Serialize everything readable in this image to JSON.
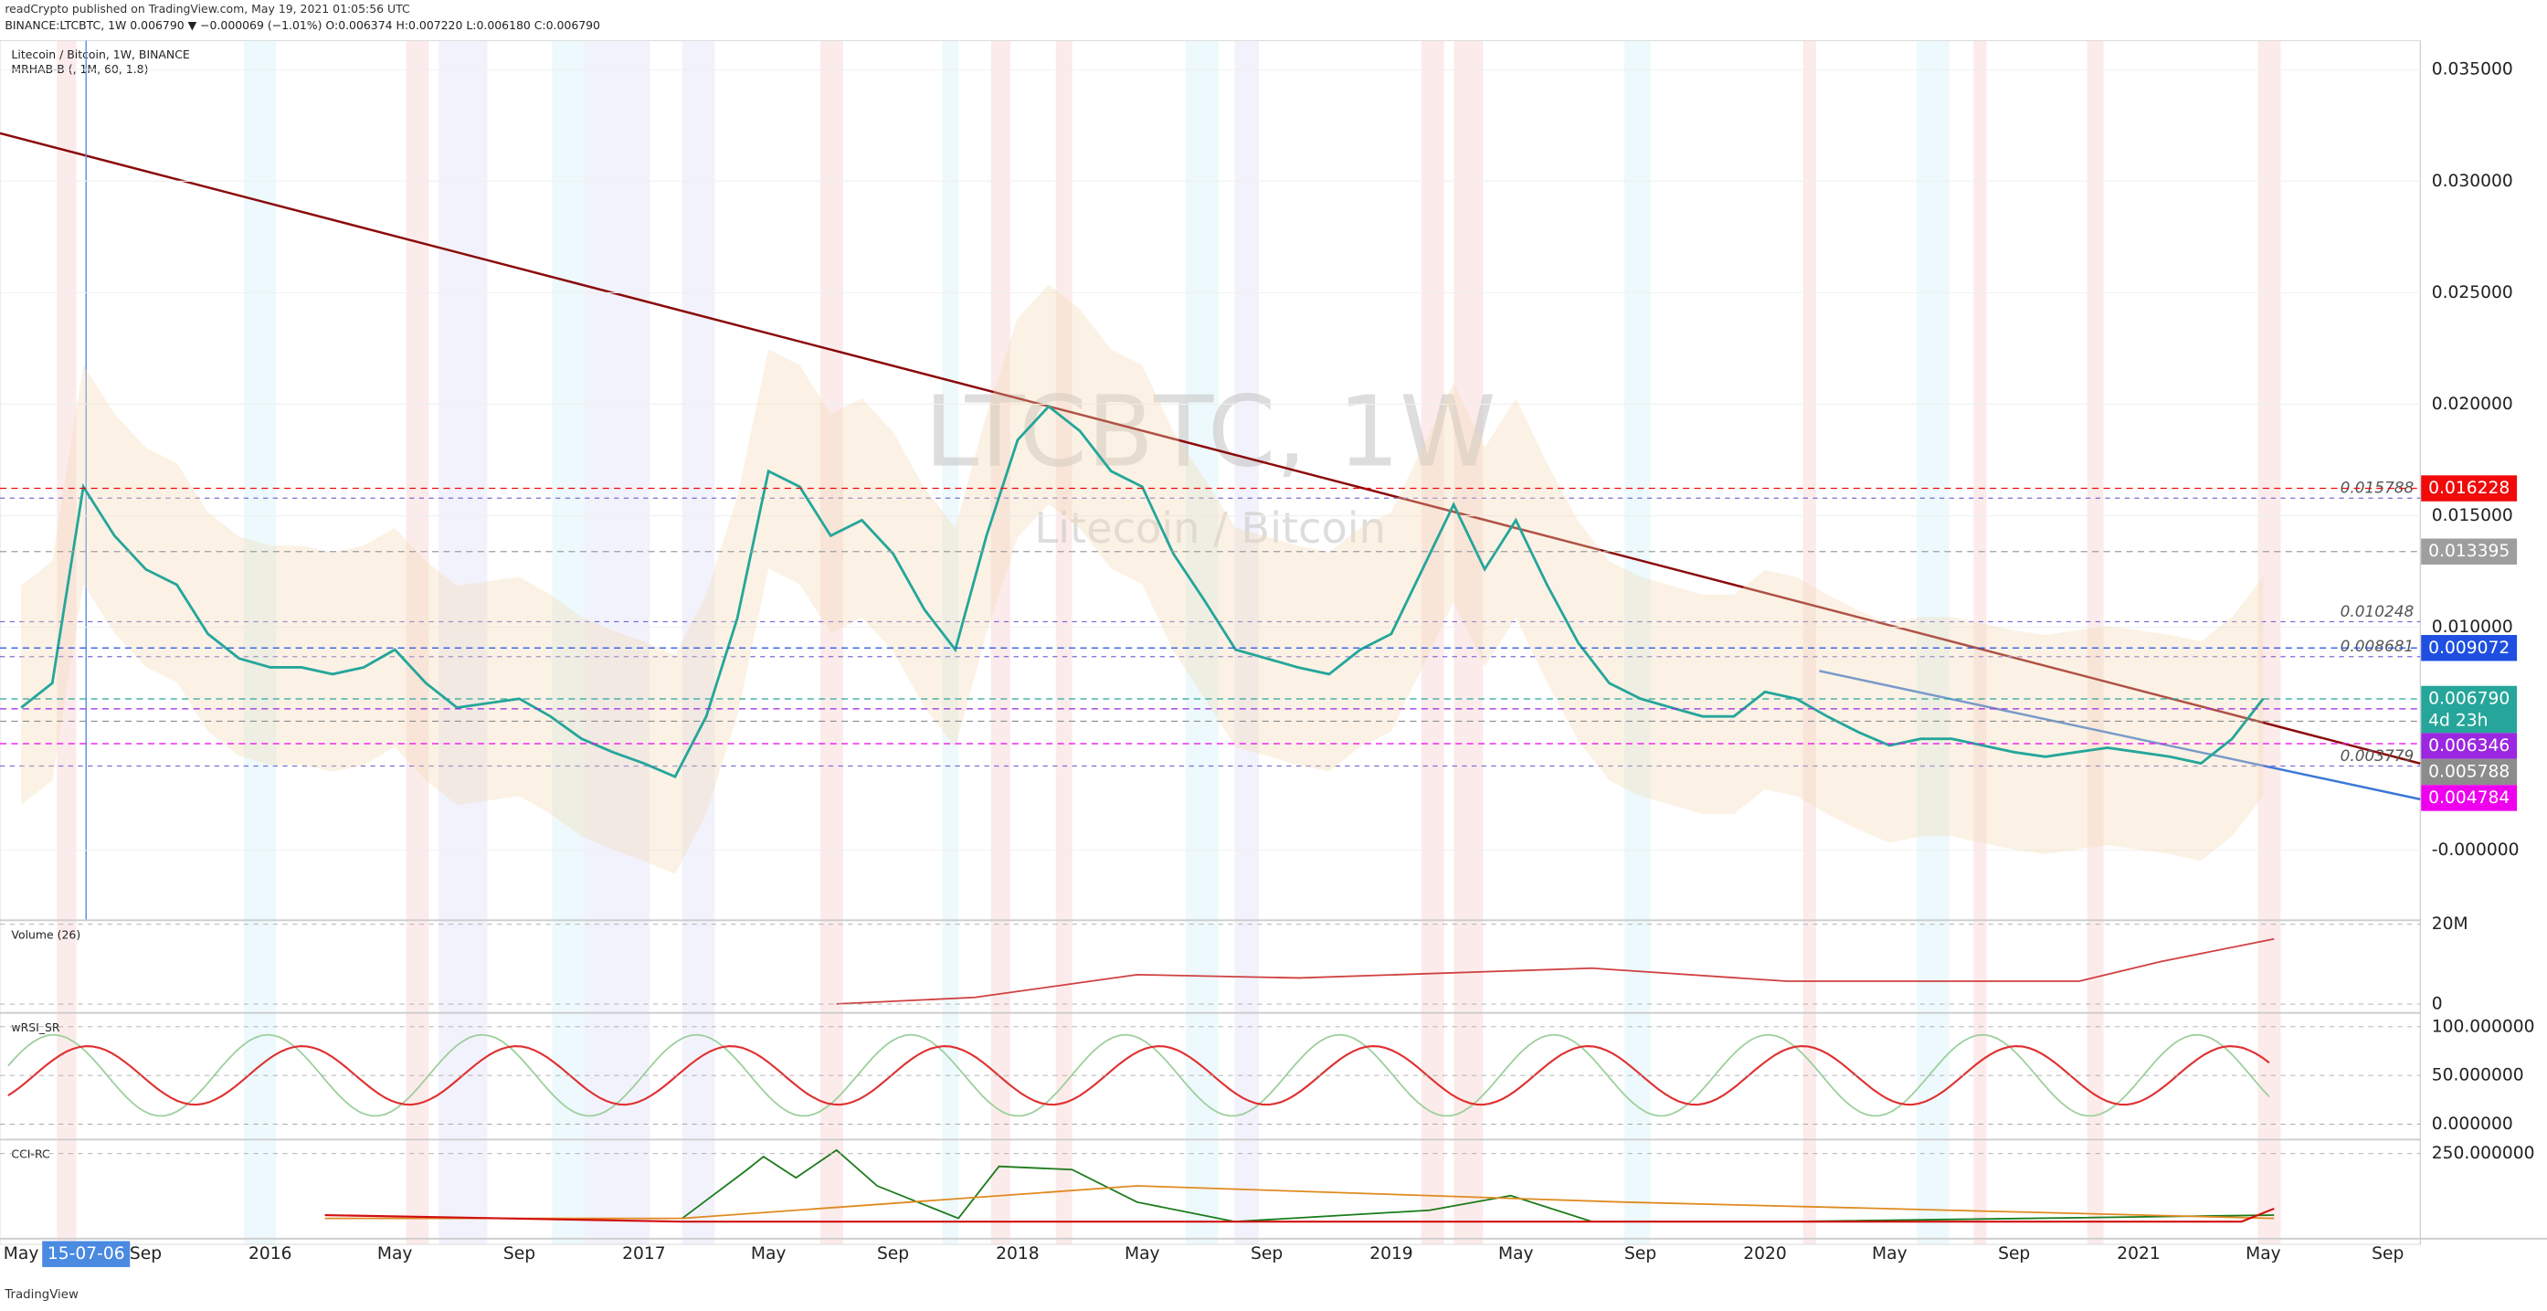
{
  "header": {
    "publisher": "readCrypto published on TradingView.com, May 19, 2021 01:05:56 UTC",
    "symbol_line": "BINANCE:LTCBTC, 1W 0.006790 ▼ −0.000069 (−1.01%) O:0.006374 H:0.007220 L:0.006180 C:0.006790"
  },
  "chart_data": {
    "type": "line",
    "legend_title": "Litecoin / Bitcoin, 1W, BINANCE",
    "legend_indicator": "MRHAB-B (, 1M, 60, 1.8)",
    "watermark": "LTCBTC, 1W",
    "watermark_sub": "Litecoin / Bitcoin",
    "crosshair_label": "15-07-06",
    "categories": [
      "May",
      null,
      null,
      null,
      "Sep",
      null,
      null,
      null,
      "2016",
      null,
      null,
      null,
      "May",
      null,
      null,
      null,
      "Sep",
      null,
      null,
      null,
      "2017",
      null,
      null,
      null,
      "May",
      null,
      null,
      null,
      "Sep",
      null,
      null,
      null,
      "2018",
      null,
      null,
      null,
      "May",
      null,
      null,
      null,
      "Sep",
      null,
      null,
      null,
      "2019",
      null,
      null,
      null,
      "May",
      null,
      null,
      null,
      "Sep",
      null,
      null,
      null,
      "2020",
      null,
      null,
      null,
      "May",
      null,
      null,
      null,
      "Sep",
      null,
      null,
      null,
      "2021",
      null,
      null,
      null,
      "May",
      null,
      null,
      null,
      "Sep"
    ],
    "values": [
      0.0064,
      0.0075,
      0.0163,
      0.0141,
      0.0126,
      0.0119,
      0.0097,
      0.0086,
      0.0082,
      0.0082,
      0.0079,
      0.0082,
      0.009,
      0.0075,
      0.0064,
      0.0066,
      0.0068,
      0.006,
      0.005,
      0.0044,
      0.0039,
      0.0033,
      0.006,
      0.0104,
      0.017,
      0.0163,
      0.0141,
      0.0148,
      0.0133,
      0.0108,
      0.009,
      0.0141,
      0.0184,
      0.0199,
      0.0188,
      0.017,
      0.0163,
      0.0133,
      0.0112,
      0.009,
      0.0086,
      0.0082,
      0.0079,
      0.009,
      0.0097,
      0.0126,
      0.0155,
      0.0126,
      0.0148,
      0.0119,
      0.0093,
      0.0075,
      0.0068,
      0.0064,
      0.006,
      0.006,
      0.0071,
      0.0068,
      0.006,
      0.0053,
      0.0047,
      0.005,
      0.005,
      0.0047,
      0.0044,
      0.0042,
      0.0044,
      0.0046,
      0.0044,
      0.0042,
      0.0039,
      0.005,
      0.0068,
      null,
      null,
      null,
      null
    ],
    "color": "#26a69a",
    "ylim": [
      -0.0031,
      0.0363
    ],
    "yticks": [
      {
        "value": 0.035,
        "label": "0.035000"
      },
      {
        "value": 0.03,
        "label": "0.030000"
      },
      {
        "value": 0.025,
        "label": "0.025000"
      },
      {
        "value": 0.02,
        "label": "0.020000"
      },
      {
        "value": 0.015,
        "label": "0.015000"
      },
      {
        "value": 0.01,
        "label": "0.010000"
      },
      {
        "value": 0,
        "label": "-0.000000"
      }
    ],
    "levels": [
      0.015788,
      0.010248,
      0.008681,
      0.003779
    ],
    "price_labels": [
      {
        "value": 0.016228,
        "label": "0.016228",
        "color": "#f00a0a"
      },
      {
        "value": 0.013395,
        "label": "0.013395",
        "color": "#9e9e9e"
      },
      {
        "value": 0.009072,
        "label": "0.009072",
        "color": "#1e4fe0"
      },
      {
        "value": 0.00679,
        "label": "0.006790",
        "color": "#26a69a"
      },
      {
        "value": 0.006346,
        "label": "0.006346",
        "color": "#9c27e0"
      },
      {
        "value": 0.005788,
        "label": "0.005788",
        "color": "#8c8c8c"
      },
      {
        "value": 0.004784,
        "label": "0.004784",
        "color": "#ee00ee"
      }
    ],
    "countdown": "4d 23h"
  },
  "panes": {
    "volume": {
      "title": "Volume (26)",
      "ylim": [
        -1600000,
        20800000
      ],
      "ticks": [
        {
          "value": 20000000,
          "label": "20M"
        },
        0
      ]
    },
    "wrsi": {
      "title": "wRSI_SR",
      "ylim": [
        -13.3,
        111.7
      ],
      "ticks": [
        {
          "value": 100,
          "label": "100.000000"
        },
        {
          "value": 50,
          "label": "50.000000"
        },
        {
          "value": 0,
          "label": "0.000000"
        }
      ]
    },
    "cci": {
      "title": "CCI-RC",
      "ylim": [
        -100,
        300
      ],
      "ticks": [
        {
          "value": 250,
          "label": "250.000000"
        }
      ]
    }
  },
  "footer": "TradingView"
}
